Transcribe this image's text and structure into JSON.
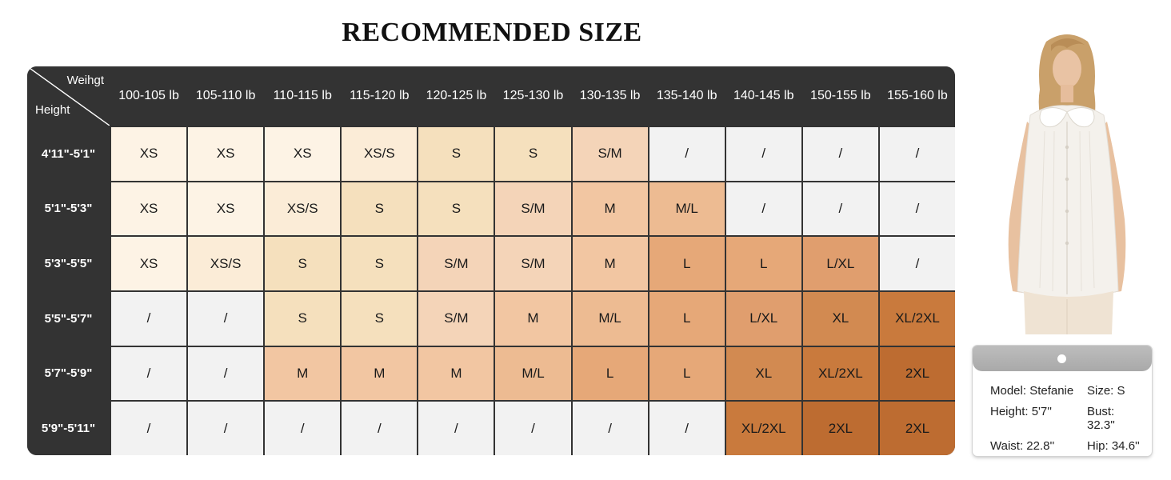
{
  "title": "RECOMMENDED SIZE",
  "table": {
    "corner_top": "Weihgt",
    "corner_bottom": "Height",
    "columns": [
      "100-105 lb",
      "105-110 lb",
      "110-115 lb",
      "115-120 lb",
      "120-125 lb",
      "125-130 lb",
      "130-135 lb",
      "135-140 lb",
      "140-145 lb",
      "150-155 lb",
      "155-160 lb"
    ],
    "rows": [
      {
        "height": "4'11\"-5'1\"",
        "sizes": [
          "XS",
          "XS",
          "XS",
          "XS/S",
          "S",
          "S",
          "S/M",
          "/",
          "/",
          "/",
          "/"
        ]
      },
      {
        "height": "5'1\"-5'3\"",
        "sizes": [
          "XS",
          "XS",
          "XS/S",
          "S",
          "S",
          "S/M",
          "M",
          "M/L",
          "/",
          "/",
          "/"
        ]
      },
      {
        "height": "5'3\"-5'5\"",
        "sizes": [
          "XS",
          "XS/S",
          "S",
          "S",
          "S/M",
          "S/M",
          "M",
          "L",
          "L",
          "L/XL",
          "/"
        ]
      },
      {
        "height": "5'5\"-5'7\"",
        "sizes": [
          "/",
          "/",
          "S",
          "S",
          "S/M",
          "M",
          "M/L",
          "L",
          "L/XL",
          "XL",
          "XL/2XL"
        ]
      },
      {
        "height": "5'7\"-5'9\"",
        "sizes": [
          "/",
          "/",
          "M",
          "M",
          "M",
          "M/L",
          "L",
          "L",
          "XL",
          "XL/2XL",
          "2XL"
        ]
      },
      {
        "height": "5'9\"-5'11\"",
        "sizes": [
          "/",
          "/",
          "/",
          "/",
          "/",
          "/",
          "/",
          "/",
          "XL/2XL",
          "2XL",
          "2XL"
        ]
      }
    ],
    "size_colors": {
      "XS": "#fdf3e5",
      "XS/S": "#fbecd7",
      "S": "#f5e0bd",
      "S/M": "#f4d4b8",
      "M": "#f2c6a2",
      "M/L": "#edbb92",
      "L": "#e6a878",
      "L/XL": "#e09e6e",
      "XL": "#d28a51",
      "XL/2XL": "#c97a3d",
      "2XL": "#bd6c31",
      "/": "#f2f2f2"
    },
    "header_color": "#333333"
  },
  "model_card": {
    "model_label": "Model: Stefanie",
    "size_label": "Size: S",
    "height_label": "Height: 5'7''",
    "bust_label": "Bust: 32.3''",
    "waist_label": "Waist: 22.8''",
    "hip_label": "Hip: 34.6''"
  },
  "photo": {
    "subject": "model-wearing-white-sleeveless-collared-blouse"
  }
}
